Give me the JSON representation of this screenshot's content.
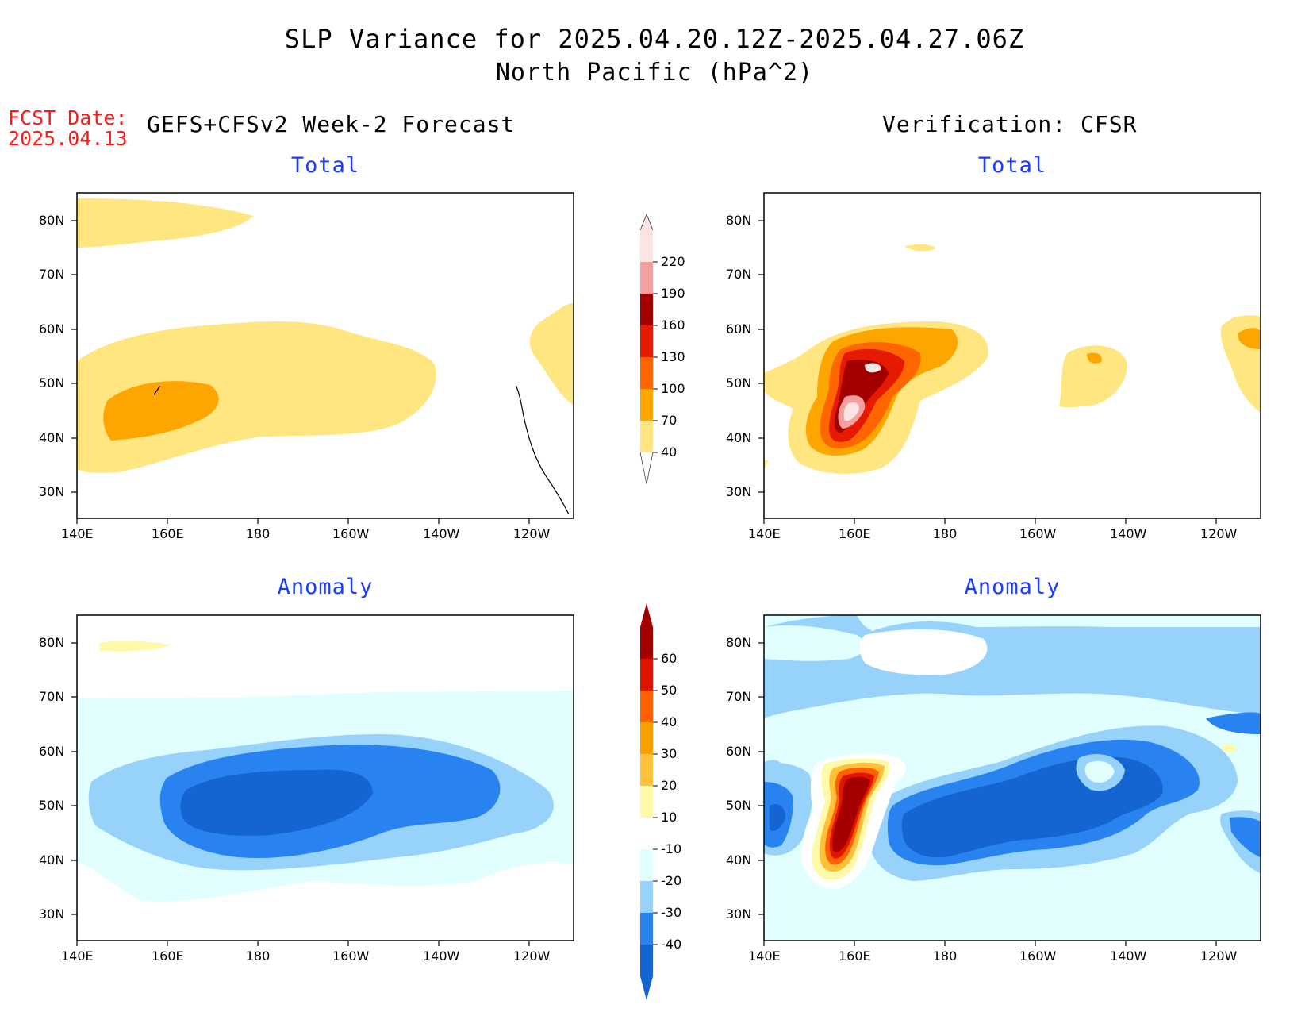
{
  "title": {
    "line1": "SLP Variance for 2025.04.20.12Z-2025.04.27.06Z",
    "line2": "North Pacific (hPa^2)"
  },
  "forecast_date": {
    "label": "FCST Date:",
    "value": "2025.04.13"
  },
  "columns": {
    "left": "GEFS+CFSv2 Week-2 Forecast",
    "right": "Verification: CFSR"
  },
  "panels": {
    "top_left": "Total",
    "top_right": "Total",
    "bottom_left": "Anomaly",
    "bottom_right": "Anomaly"
  },
  "axes": {
    "lat_labels": [
      "80N",
      "70N",
      "60N",
      "50N",
      "40N",
      "30N"
    ],
    "lon_labels": [
      "140E",
      "160E",
      "180",
      "160W",
      "140W",
      "120W"
    ]
  },
  "colorbar_total": {
    "levels": [
      "40",
      "70",
      "100",
      "130",
      "160",
      "190",
      "220"
    ],
    "colors": [
      "#ffe680",
      "#ffa500",
      "#ff6600",
      "#e61a00",
      "#a50000",
      "#f4a0a0",
      "#fde4e4"
    ]
  },
  "colorbar_anomaly": {
    "levels": [
      "-40",
      "-30",
      "-20",
      "-10",
      "10",
      "20",
      "30",
      "40",
      "50",
      "60"
    ],
    "colors": [
      "#1464d2",
      "#2882f0",
      "#96d2fa",
      "#e1ffff",
      "#ffffff",
      "#fffaaa",
      "#ffc03c",
      "#ffa000",
      "#ff6000",
      "#e11400",
      "#a50000"
    ]
  },
  "map_colors": {
    "total_40": "#ffe680",
    "total_70": "#ffa500",
    "total_100": "#ff6600",
    "total_130": "#e61a00",
    "total_160": "#a50000",
    "total_190": "#f4a0a0",
    "total_220": "#fde4e4",
    "anom_m10": "#e1ffff",
    "anom_m20": "#96d2fa",
    "anom_m30": "#2882f0",
    "anom_m40": "#1464d2",
    "anom_10": "#fffaaa",
    "anom_20": "#ffc03c",
    "anom_30": "#ffa000",
    "anom_40": "#ff6000",
    "anom_50": "#e11400",
    "anom_60": "#a50000"
  }
}
